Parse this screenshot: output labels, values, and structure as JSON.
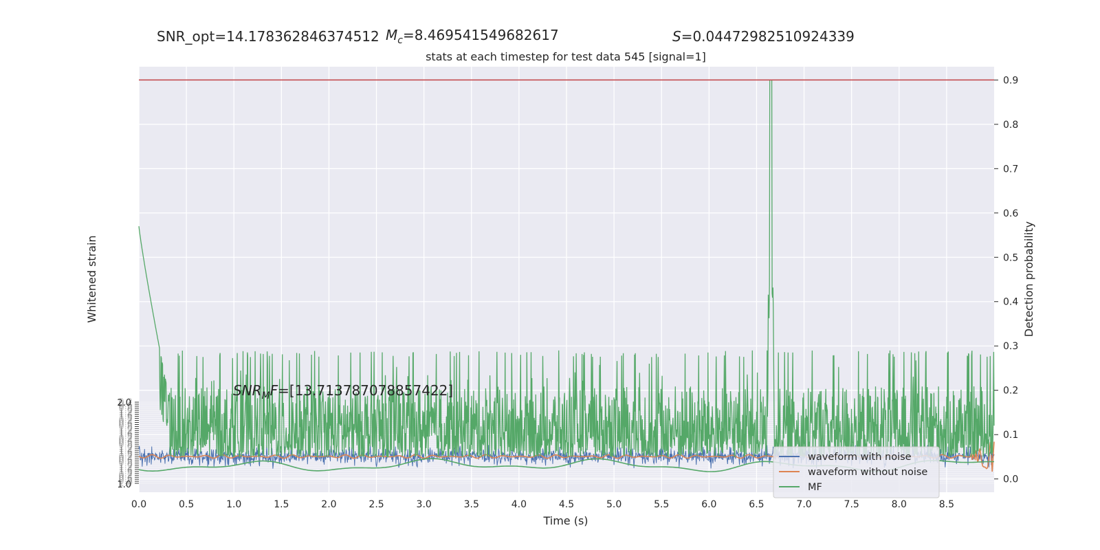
{
  "header": {
    "snr_opt": "SNR_opt=14.178362846374512",
    "mc_symbol": "M",
    "mc_sub": "c",
    "mc_value": "=8.469541549682617",
    "s_symbol": "S",
    "s_value": "=0.04472982510924339",
    "snr_mf_symbol": "SNR",
    "snr_mf_sub": "M",
    "snr_mf_tail": "F",
    "snr_mf_value": "=[13.713787078857422]"
  },
  "chart_data": {
    "type": "line",
    "title": "stats at each timestep for test data 545 [signal=1]",
    "xlabel": "Time (s)",
    "ylabel_left": "Whitened strain",
    "ylabel_right": "Detection probability",
    "xlim": [
      0.0,
      9.0
    ],
    "ylim_right": [
      -0.03,
      0.93
    ],
    "xticks": [
      "0.0",
      "0.5",
      "1.0",
      "1.5",
      "2.0",
      "2.5",
      "3.0",
      "3.5",
      "4.0",
      "4.5",
      "5.0",
      "5.5",
      "6.0",
      "6.5",
      "7.0",
      "7.5",
      "8.0",
      "8.5"
    ],
    "yticks_right": [
      "0.0",
      "0.1",
      "0.2",
      "0.3",
      "0.4",
      "0.5",
      "0.6",
      "0.7",
      "0.8",
      "0.9"
    ],
    "yticks_left": [
      "2.0",
      "1.0"
    ],
    "threshold": 0.9,
    "grid": true,
    "legend_position": "lower-right",
    "series": [
      {
        "name": "waveform with noise",
        "color": "#4c72b0"
      },
      {
        "name": "waveform without noise",
        "color": "#dd8452"
      },
      {
        "name": "MF",
        "color": "#55a868"
      }
    ],
    "detection_probability_summary": {
      "baseline_range": [
        0.05,
        0.3
      ],
      "peak_time": 6.65,
      "peak_value": 0.9,
      "initial_value": 0.57
    }
  },
  "colors": {
    "plot_bg": "#eaeaf2",
    "threshold": "#c44e52",
    "noise": "#4c72b0",
    "clean": "#dd8452",
    "mf": "#55a868"
  }
}
